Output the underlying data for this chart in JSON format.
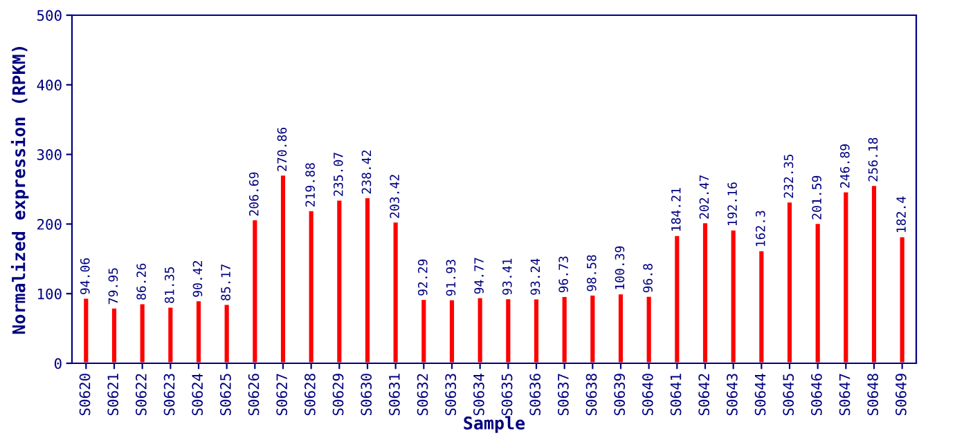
{
  "chart_data": {
    "type": "bar",
    "xlabel": "Sample",
    "ylabel": "Normalized expression (RPKM)",
    "categories": [
      "S0620",
      "S0621",
      "S0622",
      "S0623",
      "S0624",
      "S0625",
      "S0626",
      "S0627",
      "S0628",
      "S0629",
      "S0630",
      "S0631",
      "S0632",
      "S0633",
      "S0634",
      "S0635",
      "S0636",
      "S0637",
      "S0638",
      "S0639",
      "S0640",
      "S0641",
      "S0642",
      "S0643",
      "S0644",
      "S0645",
      "S0646",
      "S0647",
      "S0648",
      "S0649"
    ],
    "values": [
      94.06,
      79.95,
      86.26,
      81.35,
      90.42,
      85.17,
      206.69,
      270.86,
      219.88,
      235.07,
      238.42,
      203.42,
      92.29,
      91.93,
      94.77,
      93.41,
      93.24,
      96.73,
      98.58,
      100.39,
      96.8,
      184.21,
      202.47,
      192.16,
      162.3,
      232.35,
      201.59,
      246.89,
      256.18,
      182.4
    ],
    "color": "#ff0000",
    "data_labels": true,
    "ylim": [
      0,
      500
    ],
    "yticks": [
      0,
      100,
      200,
      300,
      400,
      500
    ],
    "grid": false,
    "legend": false
  }
}
